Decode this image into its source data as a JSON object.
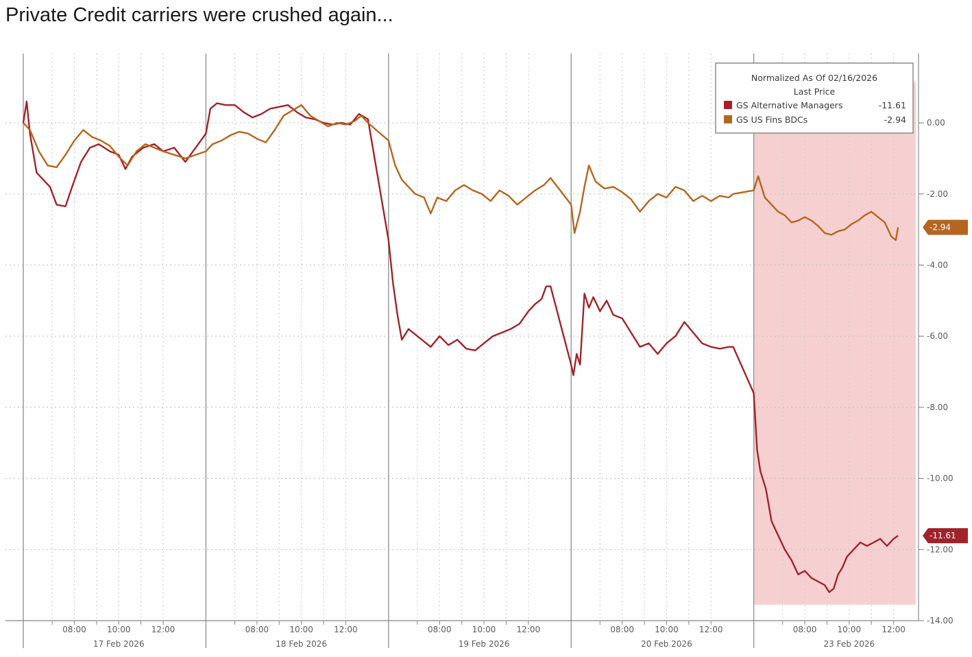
{
  "title": "Private Credit carriers were crushed again...",
  "chart_data": {
    "type": "line",
    "legend": {
      "header1": "Normalized As Of 02/16/2026",
      "header2": "Last Price",
      "placement": "top-right"
    },
    "y_ticks": [
      "0.00",
      "-2.00",
      "-4.00",
      "-6.00",
      "-8.00",
      "-10.00",
      "-12.00",
      "-14.00"
    ],
    "y_tick_values": [
      0,
      -2,
      -4,
      -6,
      -8,
      -10,
      -12,
      -14
    ],
    "ylim": [
      -14.0,
      1.95
    ],
    "grid": true,
    "x_day_labels": [
      "17 Feb 2026",
      "18 Feb 2026",
      "19 Feb 2026",
      "20 Feb 2026",
      "23 Feb 2026"
    ],
    "x_time_labels": [
      "08:00",
      "10:00",
      "12:00"
    ],
    "highlight": {
      "day_index": 4,
      "from_hour": 5.7,
      "to_hour": 13.0,
      "y_from": 1.15,
      "y_to": -13.55,
      "color": "#f6d0d0"
    },
    "session_hours": [
      5.7,
      13.0
    ],
    "series": [
      {
        "name": "GS Alternative Managers",
        "last_label": "-11.61",
        "last_value": -11.61,
        "color": "#a0232c",
        "points": [
          [
            0,
            5.7,
            0.0
          ],
          [
            0,
            5.85,
            0.6
          ],
          [
            0,
            6.0,
            -0.3
          ],
          [
            0,
            6.3,
            -1.4
          ],
          [
            0,
            6.6,
            -1.6
          ],
          [
            0,
            6.9,
            -1.8
          ],
          [
            0,
            7.2,
            -2.3
          ],
          [
            0,
            7.6,
            -2.35
          ],
          [
            0,
            7.9,
            -1.8
          ],
          [
            0,
            8.3,
            -1.1
          ],
          [
            0,
            8.7,
            -0.7
          ],
          [
            0,
            9.1,
            -0.6
          ],
          [
            0,
            9.6,
            -0.8
          ],
          [
            0,
            10.0,
            -0.9
          ],
          [
            0,
            10.3,
            -1.3
          ],
          [
            0,
            10.6,
            -0.95
          ],
          [
            0,
            11.1,
            -0.7
          ],
          [
            0,
            11.6,
            -0.6
          ],
          [
            0,
            12.0,
            -0.8
          ],
          [
            0,
            12.5,
            -0.7
          ],
          [
            0,
            13.0,
            -1.1
          ],
          [
            1,
            5.7,
            -0.3
          ],
          [
            1,
            5.9,
            0.4
          ],
          [
            1,
            6.2,
            0.55
          ],
          [
            1,
            6.6,
            0.5
          ],
          [
            1,
            7.0,
            0.5
          ],
          [
            1,
            7.4,
            0.3
          ],
          [
            1,
            7.8,
            0.15
          ],
          [
            1,
            8.2,
            0.25
          ],
          [
            1,
            8.6,
            0.4
          ],
          [
            1,
            9.0,
            0.45
          ],
          [
            1,
            9.4,
            0.5
          ],
          [
            1,
            9.8,
            0.3
          ],
          [
            1,
            10.2,
            0.15
          ],
          [
            1,
            10.6,
            0.1
          ],
          [
            1,
            11.0,
            0.0
          ],
          [
            1,
            11.4,
            -0.05
          ],
          [
            1,
            11.8,
            0.0
          ],
          [
            1,
            12.2,
            -0.05
          ],
          [
            1,
            12.6,
            0.25
          ],
          [
            1,
            13.0,
            0.1
          ],
          [
            2,
            5.7,
            -3.3
          ],
          [
            2,
            5.9,
            -4.5
          ],
          [
            2,
            6.1,
            -5.4
          ],
          [
            2,
            6.3,
            -6.1
          ],
          [
            2,
            6.6,
            -5.8
          ],
          [
            2,
            6.9,
            -5.95
          ],
          [
            2,
            7.2,
            -6.1
          ],
          [
            2,
            7.6,
            -6.3
          ],
          [
            2,
            8.0,
            -6.0
          ],
          [
            2,
            8.4,
            -6.25
          ],
          [
            2,
            8.8,
            -6.1
          ],
          [
            2,
            9.2,
            -6.35
          ],
          [
            2,
            9.6,
            -6.4
          ],
          [
            2,
            10.0,
            -6.2
          ],
          [
            2,
            10.4,
            -6.0
          ],
          [
            2,
            10.8,
            -5.9
          ],
          [
            2,
            11.2,
            -5.8
          ],
          [
            2,
            11.6,
            -5.65
          ],
          [
            2,
            12.0,
            -5.3
          ],
          [
            2,
            12.3,
            -5.1
          ],
          [
            2,
            12.6,
            -4.95
          ],
          [
            2,
            12.8,
            -4.6
          ],
          [
            2,
            13.0,
            -4.6
          ],
          [
            3,
            5.7,
            -6.8
          ],
          [
            3,
            5.8,
            -7.1
          ],
          [
            3,
            5.95,
            -6.5
          ],
          [
            3,
            6.1,
            -6.8
          ],
          [
            3,
            6.3,
            -4.8
          ],
          [
            3,
            6.5,
            -5.2
          ],
          [
            3,
            6.7,
            -4.9
          ],
          [
            3,
            7.0,
            -5.3
          ],
          [
            3,
            7.3,
            -5.0
          ],
          [
            3,
            7.6,
            -5.4
          ],
          [
            3,
            8.0,
            -5.5
          ],
          [
            3,
            8.4,
            -5.9
          ],
          [
            3,
            8.8,
            -6.3
          ],
          [
            3,
            9.2,
            -6.2
          ],
          [
            3,
            9.6,
            -6.5
          ],
          [
            3,
            10.0,
            -6.2
          ],
          [
            3,
            10.4,
            -6.0
          ],
          [
            3,
            10.8,
            -5.6
          ],
          [
            3,
            11.2,
            -5.9
          ],
          [
            3,
            11.6,
            -6.2
          ],
          [
            3,
            12.0,
            -6.3
          ],
          [
            3,
            12.4,
            -6.35
          ],
          [
            3,
            12.8,
            -6.3
          ],
          [
            3,
            13.0,
            -6.3
          ],
          [
            4,
            5.7,
            -7.6
          ],
          [
            4,
            5.85,
            -9.2
          ],
          [
            4,
            6.0,
            -9.8
          ],
          [
            4,
            6.25,
            -10.3
          ],
          [
            4,
            6.5,
            -11.2
          ],
          [
            4,
            6.8,
            -11.6
          ],
          [
            4,
            7.1,
            -12.0
          ],
          [
            4,
            7.4,
            -12.3
          ],
          [
            4,
            7.7,
            -12.7
          ],
          [
            4,
            8.0,
            -12.6
          ],
          [
            4,
            8.3,
            -12.8
          ],
          [
            4,
            8.6,
            -12.9
          ],
          [
            4,
            8.9,
            -13.0
          ],
          [
            4,
            9.1,
            -13.2
          ],
          [
            4,
            9.3,
            -13.1
          ],
          [
            4,
            9.5,
            -12.7
          ],
          [
            4,
            9.7,
            -12.5
          ],
          [
            4,
            9.9,
            -12.2
          ],
          [
            4,
            10.2,
            -12.0
          ],
          [
            4,
            10.5,
            -11.8
          ],
          [
            4,
            10.8,
            -11.9
          ],
          [
            4,
            11.1,
            -11.8
          ],
          [
            4,
            11.4,
            -11.7
          ],
          [
            4,
            11.7,
            -11.9
          ],
          [
            4,
            12.0,
            -11.7
          ],
          [
            4,
            12.2,
            -11.61
          ]
        ]
      },
      {
        "name": "GS US Fins BDCs",
        "last_label": "-2.94",
        "last_value": -2.94,
        "color": "#b5651d",
        "points": [
          [
            0,
            5.7,
            0.0
          ],
          [
            0,
            6.0,
            -0.2
          ],
          [
            0,
            6.4,
            -0.8
          ],
          [
            0,
            6.8,
            -1.2
          ],
          [
            0,
            7.2,
            -1.25
          ],
          [
            0,
            7.6,
            -0.9
          ],
          [
            0,
            8.0,
            -0.5
          ],
          [
            0,
            8.4,
            -0.2
          ],
          [
            0,
            8.8,
            -0.4
          ],
          [
            0,
            9.2,
            -0.5
          ],
          [
            0,
            9.6,
            -0.65
          ],
          [
            0,
            10.0,
            -0.95
          ],
          [
            0,
            10.4,
            -1.2
          ],
          [
            0,
            10.8,
            -0.8
          ],
          [
            0,
            11.2,
            -0.6
          ],
          [
            0,
            11.6,
            -0.7
          ],
          [
            0,
            12.0,
            -0.8
          ],
          [
            0,
            12.5,
            -0.9
          ],
          [
            0,
            13.0,
            -1.0
          ],
          [
            1,
            5.7,
            -0.8
          ],
          [
            1,
            6.0,
            -0.6
          ],
          [
            1,
            6.4,
            -0.5
          ],
          [
            1,
            6.8,
            -0.35
          ],
          [
            1,
            7.2,
            -0.25
          ],
          [
            1,
            7.6,
            -0.3
          ],
          [
            1,
            8.0,
            -0.45
          ],
          [
            1,
            8.4,
            -0.55
          ],
          [
            1,
            8.8,
            -0.2
          ],
          [
            1,
            9.2,
            0.2
          ],
          [
            1,
            9.6,
            0.35
          ],
          [
            1,
            10.0,
            0.5
          ],
          [
            1,
            10.4,
            0.2
          ],
          [
            1,
            10.8,
            0.05
          ],
          [
            1,
            11.2,
            -0.1
          ],
          [
            1,
            11.6,
            0.0
          ],
          [
            1,
            12.0,
            -0.05
          ],
          [
            1,
            12.4,
            0.05
          ],
          [
            1,
            12.7,
            0.2
          ],
          [
            1,
            13.0,
            0.0
          ],
          [
            2,
            5.7,
            -0.5
          ],
          [
            2,
            6.0,
            -1.2
          ],
          [
            2,
            6.3,
            -1.6
          ],
          [
            2,
            6.6,
            -1.8
          ],
          [
            2,
            6.9,
            -2.0
          ],
          [
            2,
            7.3,
            -2.1
          ],
          [
            2,
            7.6,
            -2.55
          ],
          [
            2,
            7.9,
            -2.1
          ],
          [
            2,
            8.3,
            -2.2
          ],
          [
            2,
            8.7,
            -1.9
          ],
          [
            2,
            9.1,
            -1.75
          ],
          [
            2,
            9.5,
            -1.9
          ],
          [
            2,
            9.9,
            -2.0
          ],
          [
            2,
            10.3,
            -2.2
          ],
          [
            2,
            10.7,
            -1.9
          ],
          [
            2,
            11.1,
            -2.05
          ],
          [
            2,
            11.5,
            -2.3
          ],
          [
            2,
            11.9,
            -2.1
          ],
          [
            2,
            12.3,
            -1.9
          ],
          [
            2,
            12.7,
            -1.75
          ],
          [
            2,
            13.0,
            -1.55
          ],
          [
            3,
            5.7,
            -2.3
          ],
          [
            3,
            5.85,
            -3.1
          ],
          [
            3,
            6.1,
            -2.5
          ],
          [
            3,
            6.3,
            -1.8
          ],
          [
            3,
            6.5,
            -1.2
          ],
          [
            3,
            6.8,
            -1.65
          ],
          [
            3,
            7.2,
            -1.85
          ],
          [
            3,
            7.6,
            -1.8
          ],
          [
            3,
            8.0,
            -1.95
          ],
          [
            3,
            8.4,
            -2.15
          ],
          [
            3,
            8.8,
            -2.5
          ],
          [
            3,
            9.2,
            -2.2
          ],
          [
            3,
            9.6,
            -2.0
          ],
          [
            3,
            10.0,
            -2.1
          ],
          [
            3,
            10.4,
            -1.8
          ],
          [
            3,
            10.8,
            -1.9
          ],
          [
            3,
            11.2,
            -2.2
          ],
          [
            3,
            11.6,
            -2.05
          ],
          [
            3,
            12.0,
            -2.2
          ],
          [
            3,
            12.4,
            -2.05
          ],
          [
            3,
            12.8,
            -2.1
          ],
          [
            3,
            13.0,
            -2.0
          ],
          [
            4,
            5.7,
            -1.9
          ],
          [
            4,
            5.9,
            -1.5
          ],
          [
            4,
            6.2,
            -2.1
          ],
          [
            4,
            6.5,
            -2.3
          ],
          [
            4,
            6.8,
            -2.5
          ],
          [
            4,
            7.1,
            -2.6
          ],
          [
            4,
            7.4,
            -2.8
          ],
          [
            4,
            7.7,
            -2.75
          ],
          [
            4,
            8.0,
            -2.65
          ],
          [
            4,
            8.3,
            -2.75
          ],
          [
            4,
            8.6,
            -2.9
          ],
          [
            4,
            8.9,
            -3.1
          ],
          [
            4,
            9.2,
            -3.15
          ],
          [
            4,
            9.5,
            -3.05
          ],
          [
            4,
            9.8,
            -3.0
          ],
          [
            4,
            10.1,
            -2.85
          ],
          [
            4,
            10.4,
            -2.75
          ],
          [
            4,
            10.7,
            -2.6
          ],
          [
            4,
            11.0,
            -2.5
          ],
          [
            4,
            11.3,
            -2.65
          ],
          [
            4,
            11.6,
            -2.8
          ],
          [
            4,
            11.9,
            -3.2
          ],
          [
            4,
            12.1,
            -3.3
          ],
          [
            4,
            12.2,
            -2.94
          ]
        ]
      }
    ]
  }
}
